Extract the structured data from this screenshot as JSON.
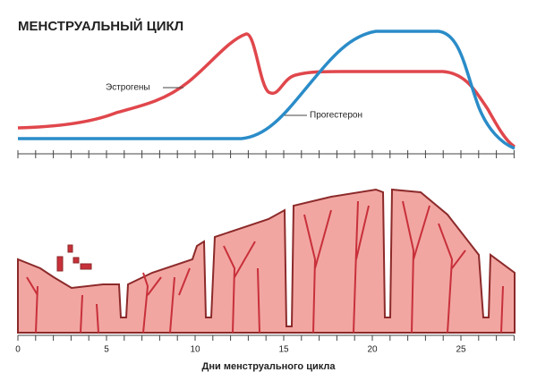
{
  "title": "МЕНСТРУАЛЬНЫЙ ЦИКЛ",
  "curves": {
    "estrogen": "Эстрогены",
    "progesterone": "Прогестерон"
  },
  "axis": {
    "ticks": [
      "0",
      "5",
      "10",
      "15",
      "20",
      "25"
    ],
    "label": "Дни менструального цикла"
  }
}
